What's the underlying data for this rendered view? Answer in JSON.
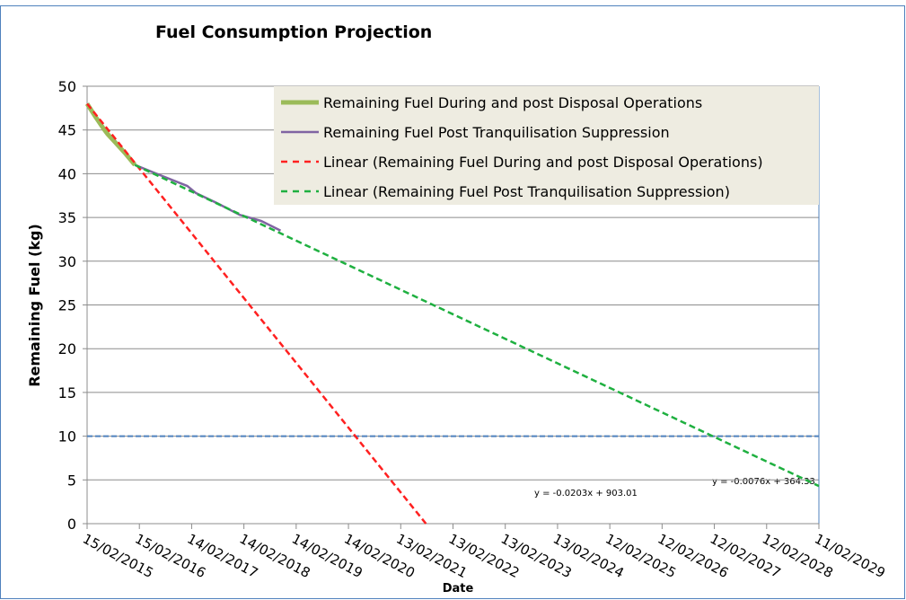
{
  "chart_data": {
    "type": "line",
    "title": "Fuel Consumption Projection",
    "x_label": "Date",
    "y_label": "Remaining Fuel (kg)",
    "xlim": [
      "15/02/2015",
      "11/02/2029"
    ],
    "xticks": [
      "15/02/2015",
      "15/02/2016",
      "14/02/2017",
      "14/02/2018",
      "14/02/2019",
      "14/02/2020",
      "13/02/2021",
      "13/02/2022",
      "13/02/2023",
      "13/02/2024",
      "12/02/2025",
      "12/02/2026",
      "12/02/2027",
      "12/02/2028",
      "11/02/2029"
    ],
    "ylim": [
      0,
      50
    ],
    "yticks": [
      0,
      5,
      10,
      15,
      20,
      25,
      30,
      35,
      40,
      45,
      50
    ],
    "grid": true,
    "legend": "top-right",
    "series": [
      {
        "name": "Remaining Fuel During and post Disposal Operations",
        "color": "#9bbb59",
        "width": 5,
        "dash": false,
        "x": [
          "15/02/2015",
          "15/04/2015",
          "08/06/2015",
          "10/07/2015",
          "10/09/2015",
          "10/11/2015",
          "15/01/2016"
        ],
        "values": [
          48,
          46.5,
          45.2,
          44.5,
          43.4,
          42.3,
          41
        ]
      },
      {
        "name": "Remaining Fuel Post Tranquilisation Suppression",
        "color": "#8064a2",
        "width": 2.5,
        "dash": false,
        "x": [
          "15/01/2016",
          "15/07/2016",
          "15/01/2017",
          "15/03/2017",
          "15/08/2017",
          "15/01/2018",
          "15/06/2018",
          "28/10/2018"
        ],
        "values": [
          41,
          39.8,
          38.6,
          37.8,
          36.6,
          35.3,
          34.6,
          33.5
        ]
      },
      {
        "name": "Linear (Remaining Fuel During and post Disposal Operations)",
        "color": "#ff2020",
        "width": 2.5,
        "dash": true,
        "x": [
          "15/02/2015",
          "08/08/2021"
        ],
        "values": [
          48,
          0
        ]
      },
      {
        "name": "Linear (Remaining Fuel Post Tranquilisation Suppression)",
        "color": "#1fb040",
        "width": 2.5,
        "dash": true,
        "x": [
          "15/01/2016",
          "11/02/2029"
        ],
        "values": [
          41,
          4.3
        ]
      }
    ],
    "threshold": {
      "value": 10,
      "color": "#4f81bd"
    },
    "annotations": [
      "y = -0.0203x + 903.01",
      "y = -0.0076x + 364.33"
    ]
  }
}
